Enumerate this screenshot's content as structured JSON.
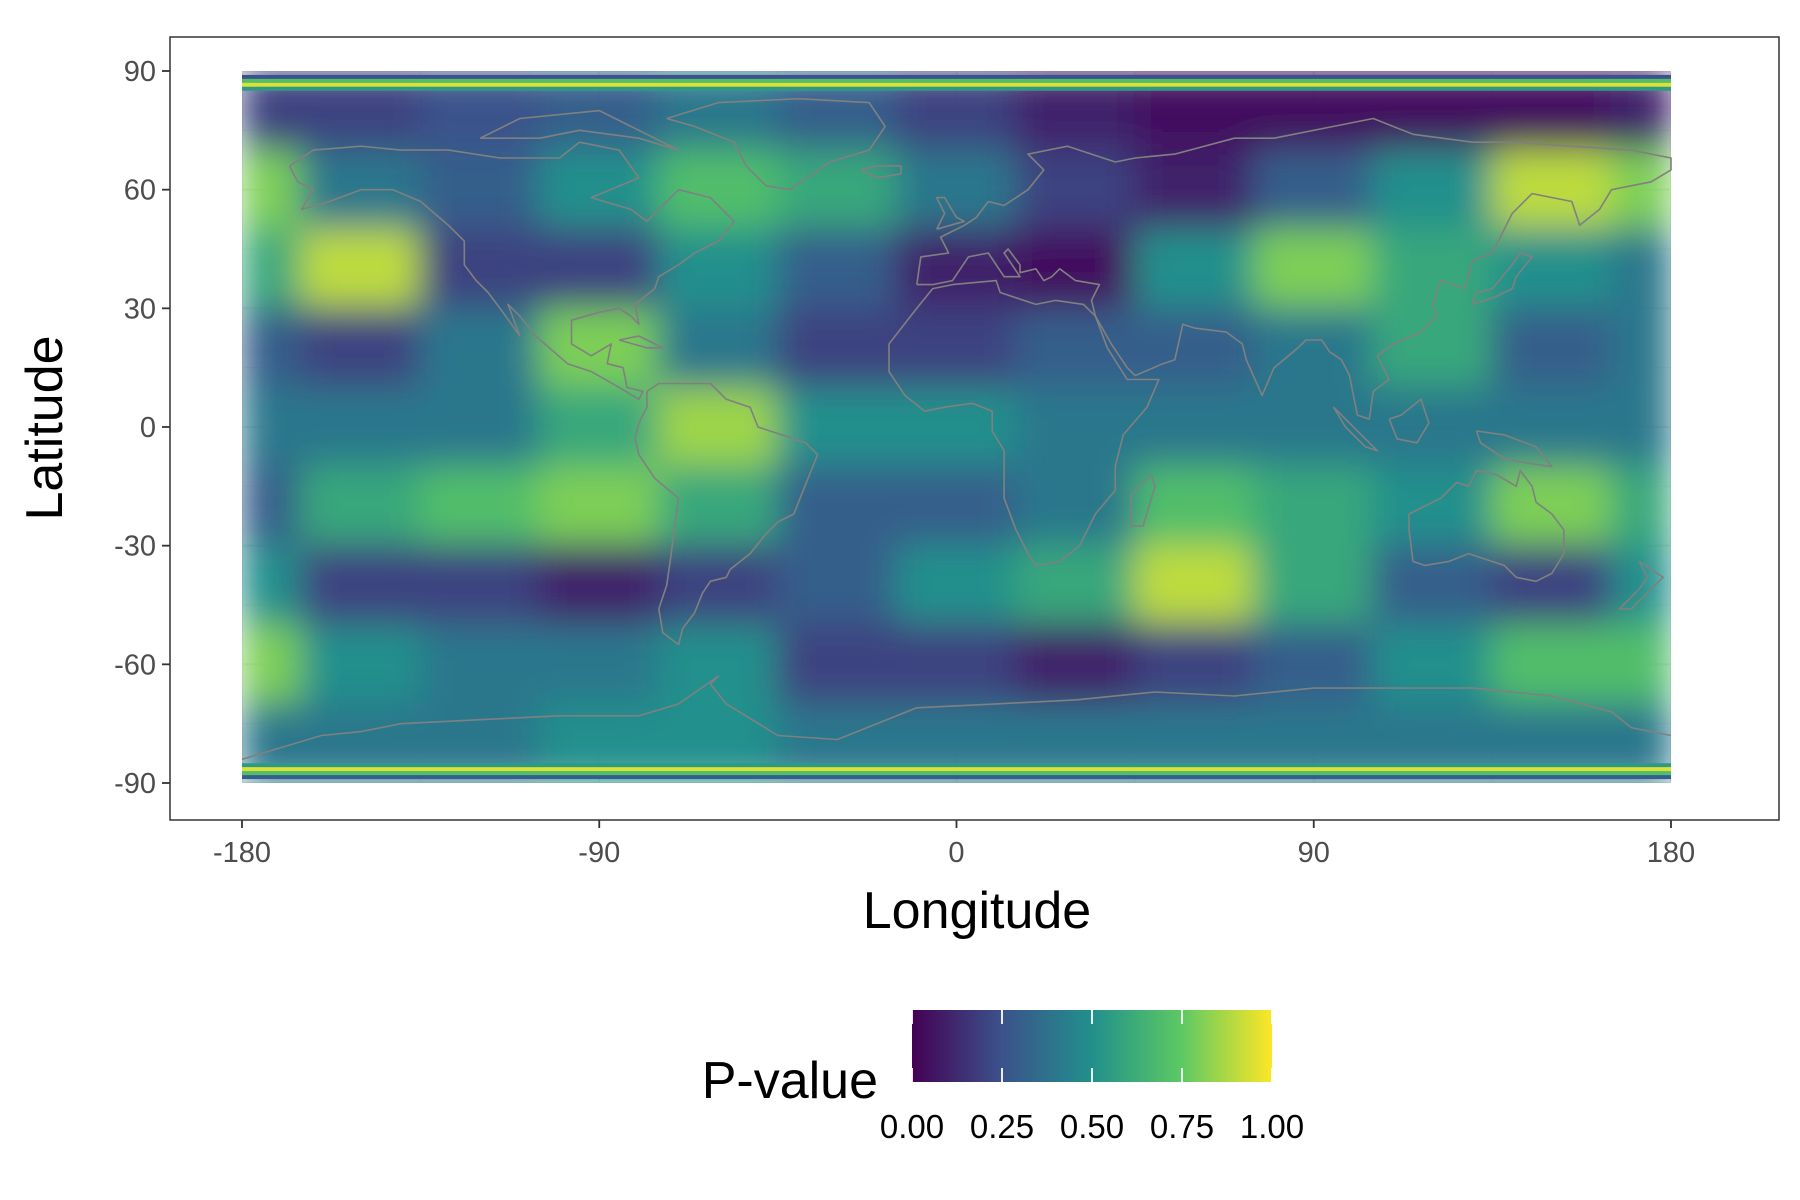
{
  "chart_data": {
    "type": "heatmap",
    "title": "",
    "xlabel": "Longitude",
    "ylabel": "Latitude",
    "xlim": [
      -180,
      180
    ],
    "ylim": [
      -90,
      90
    ],
    "x_ticks": [
      -180,
      -90,
      0,
      90,
      180
    ],
    "y_ticks": [
      90,
      60,
      30,
      0,
      -30,
      -60,
      -90
    ],
    "x_tick_labels": [
      "-180",
      "-90",
      "0",
      "90",
      "180"
    ],
    "y_tick_labels": [
      "90",
      "60",
      "30",
      "0",
      "-30",
      "-60",
      "-90"
    ],
    "grid": true,
    "coastline_overlay": true,
    "coastline_color": "#808080",
    "colorscale": "viridis",
    "colorscale_stops": [
      "#440154",
      "#3b528b",
      "#21908c",
      "#5dc963",
      "#fde725"
    ],
    "value_range": [
      0,
      1
    ],
    "z_grid": {
      "lon_step": 30,
      "lat_step": 20,
      "lon": [
        -180,
        -150,
        -120,
        -90,
        -60,
        -30,
        0,
        30,
        60,
        90,
        120,
        150,
        180
      ],
      "lat": [
        80,
        60,
        40,
        20,
        0,
        -20,
        -40,
        -60,
        -80
      ],
      "values": [
        [
          0.2,
          0.2,
          0.25,
          0.3,
          0.4,
          0.3,
          0.2,
          0.1,
          0.05,
          0.05,
          0.05,
          0.05,
          0.1
        ],
        [
          0.8,
          0.4,
          0.3,
          0.5,
          0.7,
          0.6,
          0.4,
          0.2,
          0.1,
          0.3,
          0.5,
          0.9,
          0.8
        ],
        [
          0.6,
          0.9,
          0.2,
          0.2,
          0.5,
          0.3,
          0.1,
          0.05,
          0.5,
          0.8,
          0.6,
          0.5,
          0.4
        ],
        [
          0.3,
          0.2,
          0.4,
          0.8,
          0.4,
          0.2,
          0.2,
          0.3,
          0.3,
          0.4,
          0.6,
          0.3,
          0.4
        ],
        [
          0.4,
          0.4,
          0.4,
          0.6,
          0.85,
          0.5,
          0.5,
          0.4,
          0.4,
          0.4,
          0.4,
          0.4,
          0.4
        ],
        [
          0.3,
          0.6,
          0.7,
          0.8,
          0.6,
          0.3,
          0.3,
          0.4,
          0.7,
          0.6,
          0.5,
          0.8,
          0.6
        ],
        [
          0.5,
          0.2,
          0.2,
          0.1,
          0.2,
          0.3,
          0.5,
          0.6,
          0.9,
          0.6,
          0.3,
          0.2,
          0.5
        ],
        [
          0.8,
          0.5,
          0.4,
          0.4,
          0.5,
          0.2,
          0.2,
          0.1,
          0.2,
          0.3,
          0.5,
          0.7,
          0.7
        ],
        [
          0.4,
          0.4,
          0.4,
          0.5,
          0.5,
          0.4,
          0.4,
          0.4,
          0.4,
          0.4,
          0.4,
          0.4,
          0.4
        ]
      ]
    },
    "legend": {
      "title": "P-value",
      "position": "bottom",
      "tick_values": [
        0,
        0.25,
        0.5,
        0.75,
        1
      ],
      "tick_labels": [
        "0.00",
        "0.25",
        "0.50",
        "0.75",
        "1.00"
      ]
    }
  }
}
